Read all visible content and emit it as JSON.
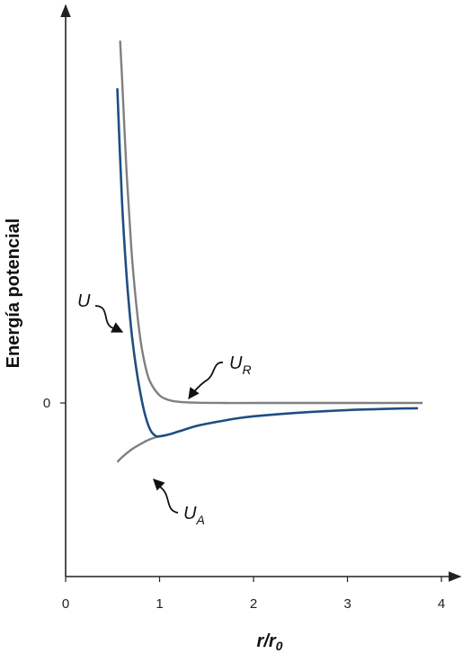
{
  "chart_data": {
    "type": "line",
    "xlabel": {
      "main": "r/r",
      "sub": "0"
    },
    "ylabel": "Energía potencial",
    "xlim": [
      0,
      4
    ],
    "x_ticks": [
      "0",
      "1",
      "2",
      "3",
      "4"
    ],
    "y_ticks": [
      "0"
    ],
    "grid": false,
    "series": [
      {
        "name": "U",
        "label_main": "U",
        "label_sub": "",
        "color": "#1f4e82",
        "x": [
          0.55,
          0.6,
          0.65,
          0.7,
          0.75,
          0.8,
          0.85,
          0.9,
          0.95,
          1.0,
          1.1,
          1.2,
          1.4,
          1.6,
          1.8,
          2.0,
          2.3,
          2.6,
          3.0,
          3.3,
          3.6,
          3.75
        ],
        "y": [
          3.3,
          2.12,
          1.32,
          0.76,
          0.37,
          0.08,
          -0.14,
          -0.28,
          -0.34,
          -0.35,
          -0.33,
          -0.3,
          -0.24,
          -0.2,
          -0.165,
          -0.14,
          -0.115,
          -0.095,
          -0.075,
          -0.065,
          -0.058,
          -0.055
        ]
      },
      {
        "name": "U_R",
        "label_main": "U",
        "label_sub": "R",
        "color": "#808080",
        "x": [
          0.58,
          0.6,
          0.65,
          0.7,
          0.75,
          0.8,
          0.85,
          0.9,
          1.0,
          1.1,
          1.2,
          1.4,
          1.7,
          2.0,
          3.0,
          3.8
        ],
        "y": [
          3.8,
          3.42,
          2.4,
          1.62,
          1.05,
          0.64,
          0.38,
          0.22,
          0.08,
          0.03,
          0.012,
          0.003,
          0.0,
          0.0,
          0.0,
          0.0
        ]
      },
      {
        "name": "U_A",
        "label_main": "U",
        "label_sub": "A",
        "color": "#808080",
        "x": [
          0.55,
          0.6,
          0.7,
          0.8,
          0.9,
          1.0,
          1.05
        ],
        "y": [
          -0.62,
          -0.57,
          -0.49,
          -0.43,
          -0.38,
          -0.35,
          -0.34
        ]
      }
    ]
  }
}
